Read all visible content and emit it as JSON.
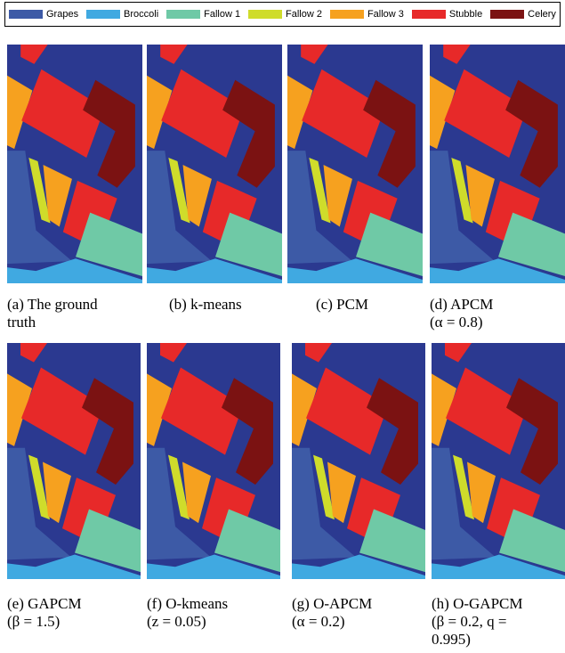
{
  "legend": [
    {
      "name": "Grapes",
      "color": "#3d5aa6"
    },
    {
      "name": "Broccoli",
      "color": "#40a9e1"
    },
    {
      "name": "Fallow 1",
      "color": "#6fc9a6"
    },
    {
      "name": "Fallow 2",
      "color": "#cfdc2b"
    },
    {
      "name": "Fallow 3",
      "color": "#f6a11f"
    },
    {
      "name": "Stubble",
      "color": "#e72929"
    },
    {
      "name": "Celery",
      "color": "#7b1212"
    }
  ],
  "captions": [
    {
      "lines": [
        "(a) The ground",
        "truth"
      ]
    },
    {
      "lines": [
        "(b) k-means"
      ]
    },
    {
      "lines": [
        "(c) PCM"
      ]
    },
    {
      "lines": [
        "(d) APCM",
        "(α = 0.8)"
      ]
    },
    {
      "lines": [
        "(e) GAPCM",
        "(β = 1.5)"
      ]
    },
    {
      "lines": [
        "(f) O-kmeans",
        "(z = 0.05)"
      ]
    },
    {
      "lines": [
        "(g) O-APCM",
        "(α = 0.2)"
      ]
    },
    {
      "lines": [
        "(h) O-GAPCM",
        "(β = 0.2, q =",
        "0.995)"
      ]
    }
  ]
}
